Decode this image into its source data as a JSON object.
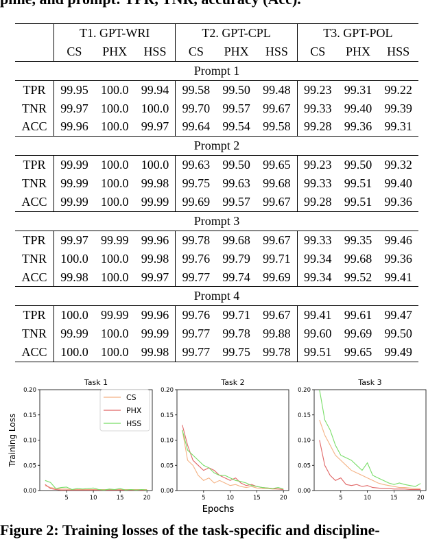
{
  "header_caption": "pline, and prompt: TPR, TNR, accuracy (Acc).",
  "table": {
    "tasks": [
      "T1. GPT-WRI",
      "T2. GPT-CPL",
      "T3. GPT-POL"
    ],
    "subcolumns": [
      "CS",
      "PHX",
      "HSS"
    ],
    "blocks": [
      {
        "prompt": "Prompt 1",
        "rows": [
          {
            "metric": "TPR",
            "values": [
              "99.95",
              "100.0",
              "99.94",
              "99.58",
              "99.50",
              "99.48",
              "99.23",
              "99.31",
              "99.22"
            ]
          },
          {
            "metric": "TNR",
            "values": [
              "99.97",
              "100.0",
              "100.0",
              "99.70",
              "99.57",
              "99.67",
              "99.33",
              "99.40",
              "99.39"
            ]
          },
          {
            "metric": "ACC",
            "values": [
              "99.96",
              "100.0",
              "99.97",
              "99.64",
              "99.54",
              "99.58",
              "99.28",
              "99.36",
              "99.31"
            ]
          }
        ]
      },
      {
        "prompt": "Prompt 2",
        "rows": [
          {
            "metric": "TPR",
            "values": [
              "99.99",
              "100.0",
              "100.0",
              "99.63",
              "99.50",
              "99.65",
              "99.23",
              "99.50",
              "99.32"
            ]
          },
          {
            "metric": "TNR",
            "values": [
              "99.99",
              "100.0",
              "99.98",
              "99.75",
              "99.63",
              "99.68",
              "99.33",
              "99.51",
              "99.40"
            ]
          },
          {
            "metric": "ACC",
            "values": [
              "99.99",
              "100.0",
              "99.99",
              "99.69",
              "99.57",
              "99.67",
              "99.28",
              "99.51",
              "99.36"
            ]
          }
        ]
      },
      {
        "prompt": "Prompt 3",
        "rows": [
          {
            "metric": "TPR",
            "values": [
              "99.97",
              "99.99",
              "99.96",
              "99.78",
              "99.68",
              "99.67",
              "99.33",
              "99.35",
              "99.46"
            ]
          },
          {
            "metric": "TNR",
            "values": [
              "100.0",
              "100.0",
              "99.98",
              "99.76",
              "99.79",
              "99.71",
              "99.34",
              "99.68",
              "99.36"
            ]
          },
          {
            "metric": "ACC",
            "values": [
              "99.98",
              "100.0",
              "99.97",
              "99.77",
              "99.74",
              "99.69",
              "99.34",
              "99.52",
              "99.41"
            ]
          }
        ]
      },
      {
        "prompt": "Prompt 4",
        "rows": [
          {
            "metric": "TPR",
            "values": [
              "100.0",
              "99.99",
              "99.96",
              "99.76",
              "99.71",
              "99.67",
              "99.41",
              "99.61",
              "99.47"
            ]
          },
          {
            "metric": "TNR",
            "values": [
              "99.99",
              "100.0",
              "99.99",
              "99.77",
              "99.78",
              "99.88",
              "99.60",
              "99.69",
              "99.50"
            ]
          },
          {
            "metric": "ACC",
            "values": [
              "100.0",
              "100.0",
              "99.98",
              "99.77",
              "99.75",
              "99.78",
              "99.51",
              "99.65",
              "99.49"
            ]
          }
        ]
      }
    ]
  },
  "chart_data": [
    {
      "type": "line",
      "title": "Task 1",
      "xlabel": "Epochs",
      "ylabel": "Training Loss",
      "xlim": [
        0,
        21
      ],
      "ylim": [
        0,
        0.2
      ],
      "xticks": [
        5,
        10,
        15,
        20
      ],
      "yticks": [
        0.0,
        0.05,
        0.1,
        0.15,
        0.2
      ],
      "yticklabels": [
        "0.00",
        "0.05",
        "0.10",
        "0.15",
        "0.20"
      ],
      "legend": "top-right",
      "series": [
        {
          "name": "CS",
          "color": "#f4b183",
          "x": [
            1,
            2,
            3,
            4,
            5,
            6,
            7,
            8,
            9,
            10,
            11,
            12,
            13,
            14,
            15,
            16,
            17,
            18,
            19,
            20
          ],
          "y": [
            0.01,
            0.006,
            0.004,
            0.003,
            0.003,
            0.002,
            0.002,
            0.002,
            0.002,
            0.002,
            0.002,
            0.002,
            0.002,
            0.002,
            0.002,
            0.002,
            0.002,
            0.002,
            0.002,
            0.002
          ]
        },
        {
          "name": "PHX",
          "color": "#e06666",
          "x": [
            1,
            2,
            3,
            4,
            5,
            6,
            7,
            8,
            9,
            10,
            11,
            12,
            13,
            14,
            15,
            16,
            17,
            18,
            19,
            20
          ],
          "y": [
            0.012,
            0.004,
            0.002,
            0.001,
            0.001,
            0.001,
            0.001,
            0.001,
            0.001,
            0.001,
            0.001,
            0.001,
            0.001,
            0.001,
            0.001,
            0.001,
            0.001,
            0.001,
            0.001,
            0.001
          ]
        },
        {
          "name": "HSS",
          "color": "#77dd66",
          "x": [
            1,
            2,
            3,
            4,
            5,
            6,
            7,
            8,
            9,
            10,
            11,
            12,
            13,
            14,
            15,
            16,
            17,
            18,
            19,
            20
          ],
          "y": [
            0.02,
            0.016,
            0.004,
            0.006,
            0.007,
            0.002,
            0.004,
            0.003,
            0.004,
            0.005,
            0.002,
            0.001,
            0.003,
            0.002,
            0.004,
            0.001,
            0.002,
            0.001,
            0.002,
            0.001
          ]
        }
      ]
    },
    {
      "type": "line",
      "title": "Task 2",
      "xlabel": "Epochs",
      "ylabel": "",
      "xlim": [
        0,
        21
      ],
      "ylim": [
        0,
        0.2
      ],
      "xticks": [
        5,
        10,
        15,
        20
      ],
      "yticks": [
        0.0,
        0.05,
        0.1,
        0.15,
        0.2
      ],
      "yticklabels": [
        "0.00",
        "0.05",
        "0.10",
        "0.15",
        "0.20"
      ],
      "series": [
        {
          "name": "CS",
          "color": "#f4b183",
          "x": [
            1,
            2,
            3,
            4,
            5,
            6,
            7,
            8,
            9,
            10,
            11,
            12,
            13,
            14,
            15,
            16,
            17,
            18,
            19,
            20
          ],
          "y": [
            0.12,
            0.06,
            0.05,
            0.03,
            0.02,
            0.025,
            0.015,
            0.02,
            0.015,
            0.01,
            0.012,
            0.008,
            0.006,
            0.008,
            0.005,
            0.004,
            0.004,
            0.003,
            0.003,
            0.002
          ]
        },
        {
          "name": "PHX",
          "color": "#e06666",
          "x": [
            1,
            2,
            3,
            4,
            5,
            6,
            7,
            8,
            9,
            10,
            11,
            12,
            13,
            14,
            15,
            16,
            17,
            18,
            19,
            20
          ],
          "y": [
            0.13,
            0.09,
            0.06,
            0.05,
            0.04,
            0.045,
            0.04,
            0.03,
            0.025,
            0.02,
            0.025,
            0.015,
            0.01,
            0.012,
            0.008,
            0.006,
            0.005,
            0.004,
            0.003,
            0.002
          ]
        },
        {
          "name": "HSS",
          "color": "#77dd66",
          "x": [
            1,
            2,
            3,
            4,
            5,
            6,
            7,
            8,
            9,
            10,
            11,
            12,
            13,
            14,
            15,
            16,
            17,
            18,
            19,
            20
          ],
          "y": [
            0.12,
            0.08,
            0.07,
            0.06,
            0.05,
            0.045,
            0.035,
            0.03,
            0.03,
            0.025,
            0.02,
            0.018,
            0.015,
            0.01,
            0.008,
            0.006,
            0.005,
            0.004,
            0.006,
            0.003
          ]
        }
      ]
    },
    {
      "type": "line",
      "title": "Task 3",
      "xlabel": "",
      "ylabel": "",
      "xlim": [
        0,
        21
      ],
      "ylim": [
        0,
        0.2
      ],
      "xticks": [
        5,
        10,
        15,
        20
      ],
      "yticks": [
        0.0,
        0.05,
        0.1,
        0.15,
        0.2
      ],
      "yticklabels": [
        "0.00",
        "0.05",
        "0.10",
        "0.15",
        "0.20"
      ],
      "series": [
        {
          "name": "CS",
          "color": "#f4b183",
          "x": [
            1,
            2,
            3,
            4,
            5,
            6,
            7,
            8,
            9,
            10,
            11,
            12,
            13,
            14,
            15,
            16,
            17,
            18,
            19,
            20
          ],
          "y": [
            0.14,
            0.11,
            0.09,
            0.07,
            0.06,
            0.05,
            0.04,
            0.035,
            0.03,
            0.025,
            0.02,
            0.015,
            0.012,
            0.01,
            0.008,
            0.006,
            0.006,
            0.005,
            0.004,
            0.004
          ]
        },
        {
          "name": "PHX",
          "color": "#e06666",
          "x": [
            1,
            2,
            3,
            4,
            5,
            6,
            7,
            8,
            9,
            10,
            11,
            12,
            13,
            14,
            15,
            16,
            17,
            18,
            19,
            20
          ],
          "y": [
            0.1,
            0.05,
            0.03,
            0.02,
            0.025,
            0.012,
            0.01,
            0.012,
            0.008,
            0.01,
            0.006,
            0.005,
            0.004,
            0.004,
            0.003,
            0.003,
            0.003,
            0.002,
            0.002,
            0.002
          ]
        },
        {
          "name": "HSS",
          "color": "#77dd66",
          "x": [
            1,
            2,
            3,
            4,
            5,
            6,
            7,
            8,
            9,
            10,
            11,
            12,
            13,
            14,
            15,
            16,
            17,
            18,
            19,
            20
          ],
          "y": [
            0.2,
            0.14,
            0.12,
            0.09,
            0.07,
            0.065,
            0.06,
            0.05,
            0.04,
            0.055,
            0.03,
            0.025,
            0.02,
            0.015,
            0.012,
            0.015,
            0.012,
            0.01,
            0.008,
            0.014
          ]
        }
      ]
    }
  ],
  "footer_caption": "Figure 2: Training losses of the task-specific and discipline-"
}
